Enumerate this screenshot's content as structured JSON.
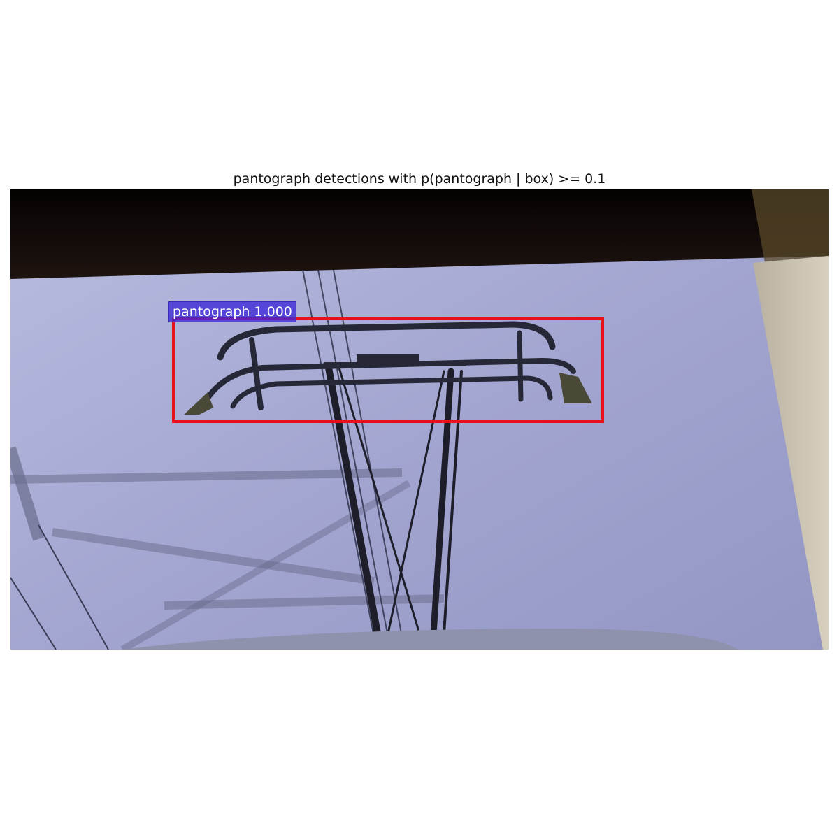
{
  "figure": {
    "title": "pantograph detections with p(pantograph | box) >= 0.1"
  },
  "detections": [
    {
      "label": "pantograph 1.000",
      "class": "pantograph",
      "score": 1.0
    }
  ],
  "colors": {
    "box_edge": "#e8111b",
    "label_background": "#3c28d7",
    "label_text": "#ffffff",
    "sky": "#a6a9d2"
  }
}
